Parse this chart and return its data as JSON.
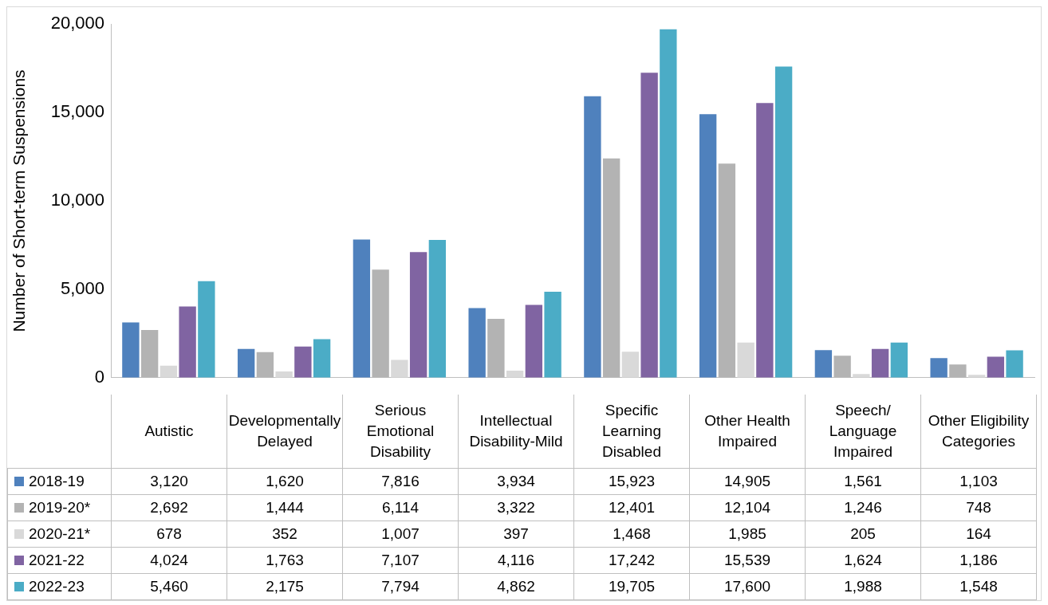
{
  "chart_data": {
    "type": "bar",
    "ylabel": "Number of Short-term Suspensions",
    "categories": [
      "Autistic",
      "Developmentally Delayed",
      "Serious Emotional Disability",
      "Intellectual Disability-Mild",
      "Specific Learning Disabled",
      "Other Health Impaired",
      "Speech/ Language Impaired",
      "Other Eligibility Categories"
    ],
    "series": [
      {
        "name": "2018-19",
        "color": "#4f81bd",
        "values": [
          3120,
          1620,
          7816,
          3934,
          15923,
          14905,
          1561,
          1103
        ],
        "value_labels": [
          "3,120",
          "1,620",
          "7,816",
          "3,934",
          "15,923",
          "14,905",
          "1,561",
          "1,103"
        ]
      },
      {
        "name": "2019-20*",
        "color": "#b3b3b3",
        "values": [
          2692,
          1444,
          6114,
          3322,
          12401,
          12104,
          1246,
          748
        ],
        "value_labels": [
          "2,692",
          "1,444",
          "6,114",
          "3,322",
          "12,401",
          "12,104",
          "1,246",
          "748"
        ]
      },
      {
        "name": "2020-21*",
        "color": "#d9d9d9",
        "values": [
          678,
          352,
          1007,
          397,
          1468,
          1985,
          205,
          164
        ],
        "value_labels": [
          "678",
          "352",
          "1,007",
          "397",
          "1,468",
          "1,985",
          "205",
          "164"
        ]
      },
      {
        "name": "2021-22",
        "color": "#8064a2",
        "values": [
          4024,
          1763,
          7107,
          4116,
          17242,
          15539,
          1624,
          1186
        ],
        "value_labels": [
          "4,024",
          "1,763",
          "7,107",
          "4,116",
          "17,242",
          "15,539",
          "1,624",
          "1,186"
        ]
      },
      {
        "name": "2022-23",
        "color": "#4bacc6",
        "values": [
          5460,
          2175,
          7794,
          4862,
          19705,
          17600,
          1988,
          1548
        ],
        "value_labels": [
          "5,460",
          "2,175",
          "7,794",
          "4,862",
          "19,705",
          "17,600",
          "1,988",
          "1,548"
        ]
      }
    ],
    "ylim": [
      0,
      20000
    ],
    "yticks": [
      0,
      {
        "value": 5000,
        "label": "5,000"
      },
      {
        "value": 10000,
        "label": "10,000"
      },
      {
        "value": 15000,
        "label": "15,000"
      },
      {
        "value": 20000,
        "label": "20,000"
      }
    ],
    "grid": false,
    "legend": "bottom"
  }
}
